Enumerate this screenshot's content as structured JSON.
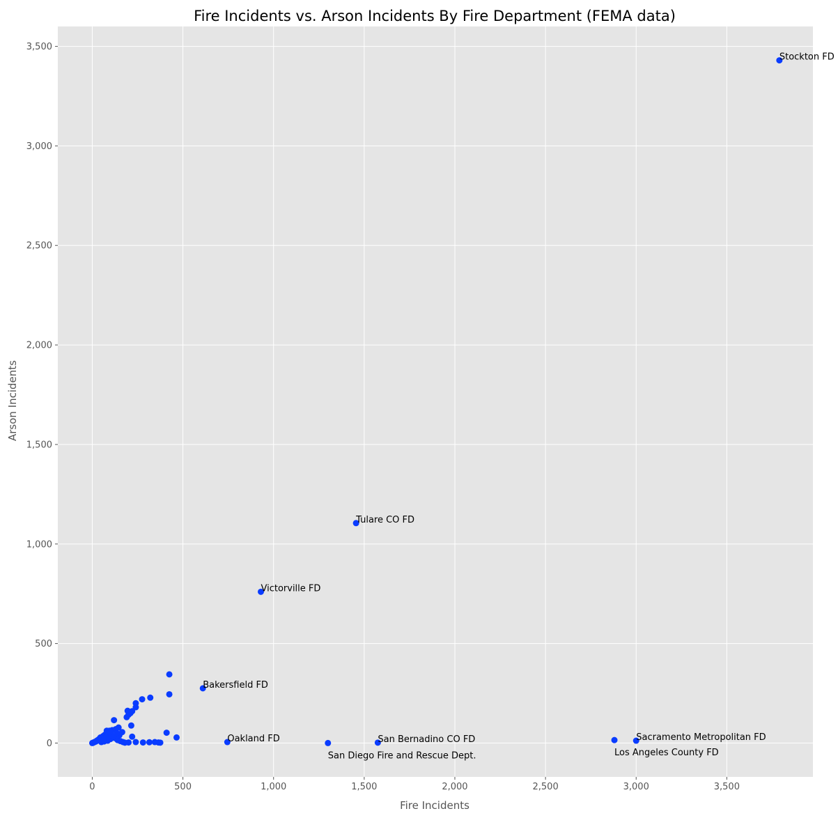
{
  "chart_data": {
    "type": "scatter",
    "title": "Fire Incidents vs. Arson Incidents By Fire Department (FEMA data)",
    "xlabel": "Fire Incidents",
    "ylabel": "Arson Incidents",
    "xlim": [
      -190,
      3975
    ],
    "ylim": [
      -170,
      3600
    ],
    "xticks": [
      0,
      500,
      1000,
      1500,
      2000,
      2500,
      3000,
      3500
    ],
    "xtick_labels": [
      "0",
      "500",
      "1,000",
      "1,500",
      "2,000",
      "2,500",
      "3,000",
      "3,500"
    ],
    "yticks": [
      0,
      500,
      1000,
      1500,
      2000,
      2500,
      3000,
      3500
    ],
    "ytick_labels": [
      "0",
      "500",
      "1,000",
      "1,500",
      "2,000",
      "2,500",
      "3,000",
      "3,500"
    ],
    "grid": true,
    "background": "#e5e5e5",
    "point_color": "#0a3cff",
    "points": [
      {
        "x": 3790,
        "y": 3430
      },
      {
        "x": 1455,
        "y": 1105
      },
      {
        "x": 930,
        "y": 760
      },
      {
        "x": 610,
        "y": 275
      },
      {
        "x": 745,
        "y": 5
      },
      {
        "x": 1300,
        "y": 0
      },
      {
        "x": 1575,
        "y": 2
      },
      {
        "x": 2880,
        "y": 15
      },
      {
        "x": 3000,
        "y": 12
      },
      {
        "x": 425,
        "y": 345
      },
      {
        "x": 425,
        "y": 245
      },
      {
        "x": 410,
        "y": 52
      },
      {
        "x": 465,
        "y": 28
      },
      {
        "x": 320,
        "y": 228
      },
      {
        "x": 275,
        "y": 220
      },
      {
        "x": 240,
        "y": 200
      },
      {
        "x": 240,
        "y": 180
      },
      {
        "x": 220,
        "y": 160
      },
      {
        "x": 210,
        "y": 150
      },
      {
        "x": 195,
        "y": 162
      },
      {
        "x": 190,
        "y": 130
      },
      {
        "x": 200,
        "y": 142
      },
      {
        "x": 215,
        "y": 88
      },
      {
        "x": 220,
        "y": 32
      },
      {
        "x": 120,
        "y": 115
      },
      {
        "x": 145,
        "y": 78
      },
      {
        "x": 165,
        "y": 55
      },
      {
        "x": 130,
        "y": 70
      },
      {
        "x": 110,
        "y": 65
      },
      {
        "x": 95,
        "y": 62
      },
      {
        "x": 80,
        "y": 62
      },
      {
        "x": 70,
        "y": 42
      },
      {
        "x": 60,
        "y": 35
      },
      {
        "x": 55,
        "y": 30
      },
      {
        "x": 45,
        "y": 28
      },
      {
        "x": 40,
        "y": 22
      },
      {
        "x": 35,
        "y": 18
      },
      {
        "x": 30,
        "y": 14
      },
      {
        "x": 25,
        "y": 12
      },
      {
        "x": 20,
        "y": 8
      },
      {
        "x": 15,
        "y": 6
      },
      {
        "x": 10,
        "y": 4
      },
      {
        "x": 5,
        "y": 2
      },
      {
        "x": 0,
        "y": 0
      },
      {
        "x": 3,
        "y": 1
      },
      {
        "x": 50,
        "y": 5
      },
      {
        "x": 65,
        "y": 8
      },
      {
        "x": 85,
        "y": 12
      },
      {
        "x": 100,
        "y": 20
      },
      {
        "x": 115,
        "y": 30
      },
      {
        "x": 125,
        "y": 25
      },
      {
        "x": 140,
        "y": 15
      },
      {
        "x": 155,
        "y": 10
      },
      {
        "x": 170,
        "y": 5
      },
      {
        "x": 180,
        "y": 2
      },
      {
        "x": 200,
        "y": 3
      },
      {
        "x": 240,
        "y": 5
      },
      {
        "x": 280,
        "y": 3
      },
      {
        "x": 315,
        "y": 4
      },
      {
        "x": 345,
        "y": 5
      },
      {
        "x": 365,
        "y": 3
      },
      {
        "x": 375,
        "y": 2
      },
      {
        "x": 90,
        "y": 45
      },
      {
        "x": 75,
        "y": 28
      },
      {
        "x": 105,
        "y": 40
      },
      {
        "x": 60,
        "y": 15
      },
      {
        "x": 45,
        "y": 10
      },
      {
        "x": 150,
        "y": 40
      },
      {
        "x": 135,
        "y": 50
      },
      {
        "x": 100,
        "y": 55
      }
    ],
    "annotations": [
      {
        "text": "Stockton FD",
        "x": 3790,
        "y": 3430,
        "pos": "right-above"
      },
      {
        "text": "Tulare CO FD",
        "x": 1455,
        "y": 1105,
        "pos": "right-above"
      },
      {
        "text": "Victorville FD",
        "x": 930,
        "y": 760,
        "pos": "right-above"
      },
      {
        "text": "Bakersfield FD",
        "x": 610,
        "y": 275,
        "pos": "right-above"
      },
      {
        "text": "Oakland FD",
        "x": 745,
        "y": 5,
        "pos": "right-above"
      },
      {
        "text": "San Diego Fire and Rescue Dept.",
        "x": 1300,
        "y": 0,
        "pos": "right-below"
      },
      {
        "text": "San Bernadino CO FD",
        "x": 1575,
        "y": 2,
        "pos": "right-above"
      },
      {
        "text": "Los Angeles County FD",
        "x": 2880,
        "y": 15,
        "pos": "right-below"
      },
      {
        "text": "Sacramento Metropolitan FD",
        "x": 3000,
        "y": 12,
        "pos": "right-above"
      }
    ]
  }
}
